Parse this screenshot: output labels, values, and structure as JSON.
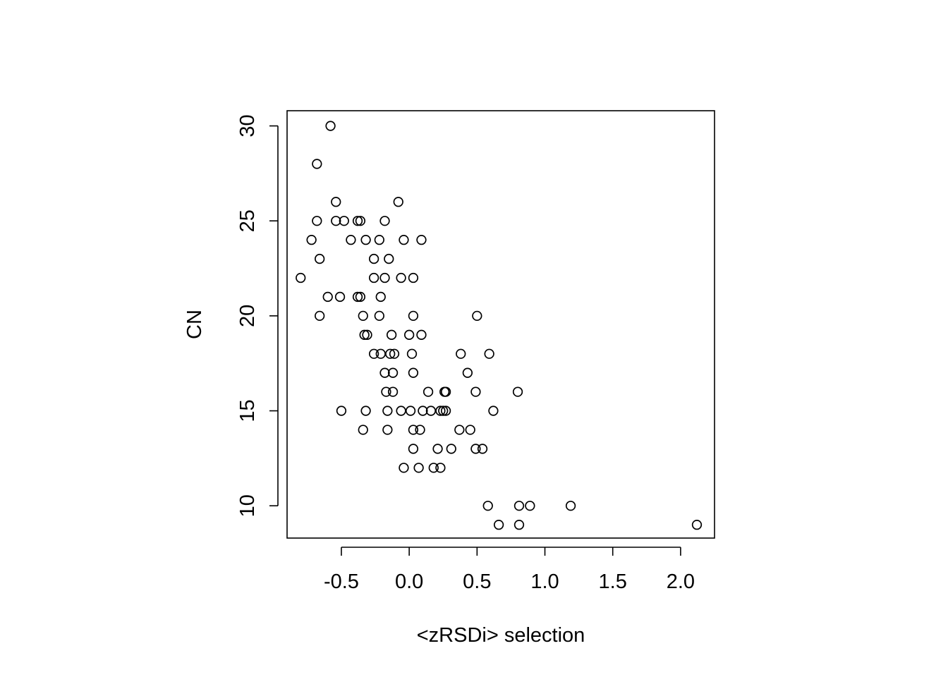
{
  "chart_data": {
    "type": "scatter",
    "title": "",
    "xlabel": "<zRSDi> selection",
    "ylabel": "CN",
    "xlim": [
      -0.9,
      2.25
    ],
    "ylim": [
      8.3,
      30.8
    ],
    "x_ticks": [
      -0.5,
      0.0,
      0.5,
      1.0,
      1.5,
      2.0
    ],
    "x_tick_labels": [
      "-0.5",
      "0.0",
      "0.5",
      "1.0",
      "1.5",
      "2.0"
    ],
    "y_ticks": [
      10,
      15,
      20,
      25,
      30
    ],
    "y_tick_labels": [
      "10",
      "15",
      "20",
      "25",
      "30"
    ],
    "grid": false,
    "legend": "none",
    "marker": "open-circle",
    "colors": {
      "marker": "#000000",
      "axis": "#000000",
      "background": "#ffffff"
    },
    "points": [
      {
        "x": -0.58,
        "y": 30
      },
      {
        "x": -0.68,
        "y": 28
      },
      {
        "x": -0.54,
        "y": 26
      },
      {
        "x": -0.08,
        "y": 26
      },
      {
        "x": -0.68,
        "y": 25
      },
      {
        "x": -0.54,
        "y": 25
      },
      {
        "x": -0.48,
        "y": 25
      },
      {
        "x": -0.38,
        "y": 25
      },
      {
        "x": -0.36,
        "y": 25
      },
      {
        "x": -0.18,
        "y": 25
      },
      {
        "x": -0.72,
        "y": 24
      },
      {
        "x": -0.43,
        "y": 24
      },
      {
        "x": -0.32,
        "y": 24
      },
      {
        "x": -0.22,
        "y": 24
      },
      {
        "x": -0.04,
        "y": 24
      },
      {
        "x": 0.09,
        "y": 24
      },
      {
        "x": -0.66,
        "y": 23
      },
      {
        "x": -0.26,
        "y": 23
      },
      {
        "x": -0.15,
        "y": 23
      },
      {
        "x": -0.8,
        "y": 22
      },
      {
        "x": -0.26,
        "y": 22
      },
      {
        "x": -0.18,
        "y": 22
      },
      {
        "x": -0.06,
        "y": 22
      },
      {
        "x": 0.03,
        "y": 22
      },
      {
        "x": -0.6,
        "y": 21
      },
      {
        "x": -0.51,
        "y": 21
      },
      {
        "x": -0.38,
        "y": 21
      },
      {
        "x": -0.36,
        "y": 21
      },
      {
        "x": -0.21,
        "y": 21
      },
      {
        "x": -0.66,
        "y": 20
      },
      {
        "x": -0.34,
        "y": 20
      },
      {
        "x": -0.22,
        "y": 20
      },
      {
        "x": 0.03,
        "y": 20
      },
      {
        "x": 0.5,
        "y": 20
      },
      {
        "x": -0.33,
        "y": 19
      },
      {
        "x": -0.31,
        "y": 19
      },
      {
        "x": -0.13,
        "y": 19
      },
      {
        "x": 0.0,
        "y": 19
      },
      {
        "x": 0.09,
        "y": 19
      },
      {
        "x": -0.26,
        "y": 18
      },
      {
        "x": -0.21,
        "y": 18
      },
      {
        "x": -0.14,
        "y": 18
      },
      {
        "x": -0.11,
        "y": 18
      },
      {
        "x": 0.02,
        "y": 18
      },
      {
        "x": 0.38,
        "y": 18
      },
      {
        "x": 0.59,
        "y": 18
      },
      {
        "x": -0.18,
        "y": 17
      },
      {
        "x": -0.12,
        "y": 17
      },
      {
        "x": 0.03,
        "y": 17
      },
      {
        "x": 0.43,
        "y": 17
      },
      {
        "x": -0.17,
        "y": 16
      },
      {
        "x": -0.12,
        "y": 16
      },
      {
        "x": 0.14,
        "y": 16
      },
      {
        "x": 0.26,
        "y": 16
      },
      {
        "x": 0.27,
        "y": 16
      },
      {
        "x": 0.49,
        "y": 16
      },
      {
        "x": 0.8,
        "y": 16
      },
      {
        "x": -0.5,
        "y": 15
      },
      {
        "x": -0.32,
        "y": 15
      },
      {
        "x": -0.16,
        "y": 15
      },
      {
        "x": -0.06,
        "y": 15
      },
      {
        "x": 0.01,
        "y": 15
      },
      {
        "x": 0.1,
        "y": 15
      },
      {
        "x": 0.16,
        "y": 15
      },
      {
        "x": 0.23,
        "y": 15
      },
      {
        "x": 0.25,
        "y": 15
      },
      {
        "x": 0.27,
        "y": 15
      },
      {
        "x": 0.62,
        "y": 15
      },
      {
        "x": -0.34,
        "y": 14
      },
      {
        "x": -0.16,
        "y": 14
      },
      {
        "x": 0.03,
        "y": 14
      },
      {
        "x": 0.08,
        "y": 14
      },
      {
        "x": 0.37,
        "y": 14
      },
      {
        "x": 0.45,
        "y": 14
      },
      {
        "x": 0.03,
        "y": 13
      },
      {
        "x": 0.21,
        "y": 13
      },
      {
        "x": 0.31,
        "y": 13
      },
      {
        "x": 0.49,
        "y": 13
      },
      {
        "x": 0.54,
        "y": 13
      },
      {
        "x": -0.04,
        "y": 12
      },
      {
        "x": 0.07,
        "y": 12
      },
      {
        "x": 0.18,
        "y": 12
      },
      {
        "x": 0.23,
        "y": 12
      },
      {
        "x": 0.58,
        "y": 10
      },
      {
        "x": 0.81,
        "y": 10
      },
      {
        "x": 0.89,
        "y": 10
      },
      {
        "x": 1.19,
        "y": 10
      },
      {
        "x": 0.66,
        "y": 9
      },
      {
        "x": 0.81,
        "y": 9
      },
      {
        "x": 2.12,
        "y": 9
      }
    ]
  }
}
